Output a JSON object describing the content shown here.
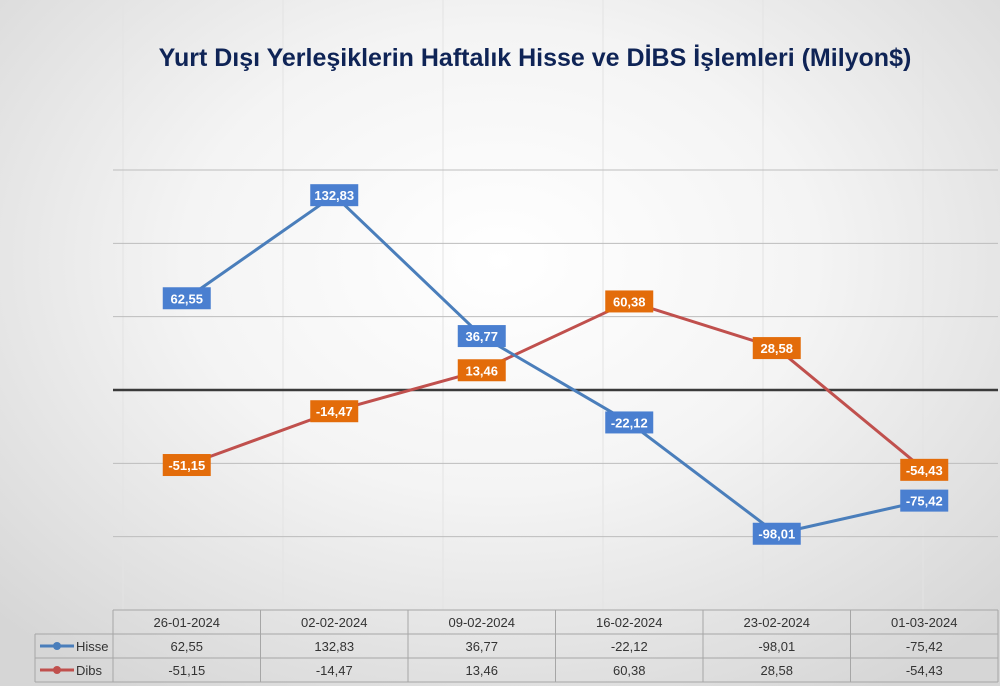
{
  "chart_data": {
    "type": "line",
    "title": "Yurt Dışı Yerleşiklerin Haftalık Hisse ve DİBS İşlemleri (Milyon$)",
    "categories": [
      "26-01-2024",
      "02-02-2024",
      "09-02-2024",
      "16-02-2024",
      "23-02-2024",
      "01-03-2024"
    ],
    "series": [
      {
        "name": "Hisse",
        "values": [
          62.55,
          132.83,
          36.77,
          -22.12,
          -98.01,
          -75.42
        ],
        "labels": [
          "62,55",
          "132,83",
          "36,77",
          "-22,12",
          "-98,01",
          "-75,42"
        ],
        "line_color": "#4a7ebb",
        "label_color": "#4a7fd0"
      },
      {
        "name": "Dibs",
        "values": [
          -51.15,
          -14.47,
          13.46,
          60.38,
          28.58,
          -54.43
        ],
        "labels": [
          "-51,15",
          "-14,47",
          "13,46",
          "60,38",
          "28,58",
          "-54,43"
        ],
        "line_color": "#c0504d",
        "label_color": "#e36c0a"
      }
    ],
    "ylim": [
      -150,
      150
    ],
    "grid": true,
    "zero_line_color": "#3a3a3a",
    "legend": "data-table",
    "data_table": true,
    "xlabel": "",
    "ylabel": ""
  }
}
